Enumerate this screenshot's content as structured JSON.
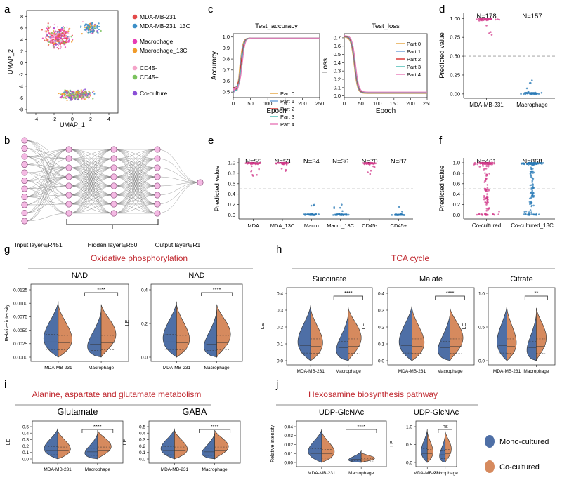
{
  "colors": {
    "mono": "#4e6fa6",
    "co": "#d68a5e",
    "title_red": "#c0282f",
    "pink": "#e0529c",
    "blue": "#2a7ab6",
    "grey": "#888888"
  },
  "panel_labels": {
    "a": "a",
    "b": "b",
    "c": "c",
    "d": "d",
    "e": "e",
    "f": "f",
    "g": "g",
    "h": "h",
    "i": "i",
    "j": "j"
  },
  "umap": {
    "xlabel": "UMAP_1",
    "ylabel": "UMAP_2",
    "xticks": [
      "-4",
      "-2",
      "0",
      "2",
      "4"
    ],
    "yticks": [
      "8",
      "6",
      "4",
      "2",
      "0",
      "-2",
      "-4",
      "-6",
      "-8"
    ],
    "legend": [
      {
        "label": "MDA-MB-231",
        "color": "#e34a4a"
      },
      {
        "label": "MDA-MB-231_13C",
        "color": "#3c8fc7"
      },
      {
        "label": "Macrophage",
        "color": "#e63cb4"
      },
      {
        "label": "Macrophage_13C",
        "color": "#f09b2a"
      },
      {
        "label": "CD45-",
        "color": "#f4a3c8"
      },
      {
        "label": "CD45+",
        "color": "#7bc25e"
      },
      {
        "label": "Co-culture",
        "color": "#8a4fd6"
      }
    ]
  },
  "network": {
    "input_label": "Input layer∈R451",
    "hidden_label": "Hidden layer∈R60",
    "output_label": "Output layer∈R1"
  },
  "chart_data": [
    {
      "id": "c_acc",
      "type": "line",
      "title": "Test_accuracy",
      "xlabel": "Epoch",
      "ylabel": "Accuracy",
      "xlim": [
        0,
        250
      ],
      "ylim": [
        0.45,
        1.03
      ],
      "xticks": [
        "0",
        "50",
        "100",
        "150",
        "200",
        "250"
      ],
      "yticks": [
        "1.0",
        "0.9",
        "0.8",
        "0.7",
        "0.6",
        "0.5"
      ],
      "legend": [
        "Part 0",
        "Part 1",
        "Part 2",
        "Part 3",
        "Part 4"
      ],
      "legend_colors": [
        "#e3a23b",
        "#6aa0d8",
        "#d82b2b",
        "#3fb8b0",
        "#e87ab8"
      ]
    },
    {
      "id": "c_loss",
      "type": "line",
      "title": "Test_loss",
      "xlabel": "Epoch",
      "ylabel": "Loss",
      "xlim": [
        0,
        250
      ],
      "ylim": [
        -0.02,
        0.75
      ],
      "xticks": [
        "0",
        "50",
        "100",
        "150",
        "200",
        "250"
      ],
      "yticks": [
        "0.7",
        "0.6",
        "0.5",
        "0.4",
        "0.3",
        "0.2",
        "0.1",
        "0.0"
      ],
      "legend": [
        "Part 0",
        "Part 1",
        "Part 2",
        "Part 3",
        "Part 4"
      ],
      "legend_colors": [
        "#e3a23b",
        "#6aa0d8",
        "#d82b2b",
        "#3fb8b0",
        "#e87ab8"
      ]
    },
    {
      "id": "d",
      "type": "scatter",
      "ylabel": "Predicted value",
      "yticks": [
        "1.00",
        "0.75",
        "0.50",
        "0.25",
        "0.00"
      ],
      "categories": [
        "MDA-MB-231",
        "Macrophage"
      ],
      "counts": [
        "N=178",
        "N=157"
      ],
      "threshold": 0.5
    },
    {
      "id": "e",
      "type": "scatter",
      "ylabel": "Predicted value",
      "yticks": [
        "1.0",
        "0.8",
        "0.6",
        "0.4",
        "0.2",
        "0.0"
      ],
      "categories": [
        "MDA",
        "MDA_13C",
        "Macro",
        "Macro_13C",
        "CD45-",
        "CD45+"
      ],
      "counts": [
        "N=55",
        "N=53",
        "N=34",
        "N=36",
        "N=70",
        "N=87"
      ],
      "threshold": 0.5
    },
    {
      "id": "f",
      "type": "scatter",
      "ylabel": "Predicted value",
      "yticks": [
        "1.0",
        "0.8",
        "0.6",
        "0.4",
        "0.2",
        "0.0"
      ],
      "categories": [
        "Co-cultured",
        "Co-cultured_13C"
      ],
      "counts": [
        "N=461",
        "N=868"
      ],
      "threshold": 0.5
    }
  ],
  "sections": {
    "g_title": "Oxidative phosphorylation",
    "h_title": "TCA cycle",
    "i_title": "Alanine, aspartate and glutamate metabolism",
    "j_title": "Hexosamine biosynthesis pathway"
  },
  "violins": [
    {
      "id": "g1",
      "title": "NAD",
      "ylabel": "Relative intensity",
      "yticks": [
        "0.0125",
        "0.0100",
        "0.0075",
        "0.0050",
        "0.0025",
        "0.0000"
      ],
      "cats": [
        "MDA-MB-231",
        "Macrophage"
      ],
      "sig": "****"
    },
    {
      "id": "g2",
      "title": "NAD",
      "ylabel": "LE",
      "yticks": [
        "0.4",
        "0.2",
        "0.0"
      ],
      "cats": [
        "MDA-MB-231",
        "Macrophage"
      ],
      "sig": "****"
    },
    {
      "id": "h1",
      "title": "Succinate",
      "ylabel": "LE",
      "yticks": [
        "0.4",
        "0.3",
        "0.2",
        "0.1",
        "0.0"
      ],
      "cats": [
        "MDA-MB-231",
        "Macrophage"
      ],
      "sig": "****"
    },
    {
      "id": "h2",
      "title": "Malate",
      "ylabel": "LE",
      "yticks": [
        "0.4",
        "0.3",
        "0.2",
        "0.1",
        "0.0"
      ],
      "cats": [
        "MDA-MB-231",
        "Macrophage"
      ],
      "sig": "****"
    },
    {
      "id": "h3",
      "title": "Citrate",
      "ylabel": "LE",
      "yticks": [
        "1.0",
        "0.5",
        "0.0"
      ],
      "cats": [
        "MDA-MB-231",
        "Macrophage"
      ],
      "sig": "**"
    },
    {
      "id": "i1",
      "title": "Glutamate",
      "ylabel": "LE",
      "yticks": [
        "0.5",
        "0.4",
        "0.3",
        "0.2",
        "0.1",
        "0.0"
      ],
      "cats": [
        "MDA-MB-231",
        "Macrophage"
      ],
      "sig": "****"
    },
    {
      "id": "i2",
      "title": "GABA",
      "ylabel": "LE",
      "yticks": [
        "0.5",
        "0.4",
        "0.3",
        "0.2",
        "0.1",
        "0.0"
      ],
      "cats": [
        "MDA-MB-231",
        "Macrophage"
      ],
      "sig": "****"
    },
    {
      "id": "j1",
      "title": "UDP-GlcNAc",
      "ylabel": "Relative intensity",
      "yticks": [
        "0.04",
        "0.03",
        "0.02",
        "0.01",
        "0.00"
      ],
      "cats": [
        "MDA-MB-231",
        "Macrophage"
      ],
      "sig": "****"
    },
    {
      "id": "j2",
      "title": "UDP-GlcNAc",
      "ylabel": "LE",
      "yticks": [
        "1.0",
        "0.5",
        "0.0"
      ],
      "cats": [
        "MDA-MB-231",
        "Macrophage"
      ],
      "sig": "ns"
    }
  ],
  "violin_legend": [
    {
      "label": "Mono-cultured",
      "color": "#4e6fa6"
    },
    {
      "label": "Co-cultured",
      "color": "#d68a5e"
    }
  ]
}
